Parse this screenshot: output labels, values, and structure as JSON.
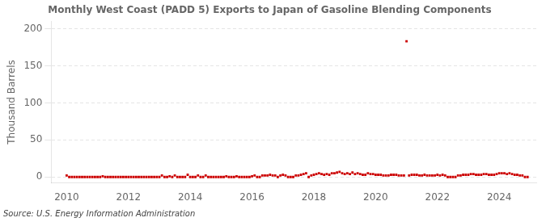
{
  "chart_data": {
    "type": "scatter",
    "title": "Monthly West Coast (PADD 5) Exports to Japan of Gasoline Blending Components",
    "ylabel": "Thousand Barrels",
    "source": "Source: U.S. Energy Information Administration",
    "color": "#cc0000",
    "marker": "square",
    "grid": "y",
    "xlim": [
      2009.5,
      2025.2
    ],
    "ylim": [
      -8,
      210
    ],
    "xticks": [
      2010,
      2012,
      2014,
      2016,
      2018,
      2020,
      2022,
      2024
    ],
    "yticks": [
      0,
      50,
      100,
      150,
      200
    ],
    "x": [
      2010.0,
      2010.083,
      2010.167,
      2010.25,
      2010.333,
      2010.417,
      2010.5,
      2010.583,
      2010.667,
      2010.75,
      2010.833,
      2010.917,
      2011.0,
      2011.083,
      2011.167,
      2011.25,
      2011.333,
      2011.417,
      2011.5,
      2011.583,
      2011.667,
      2011.75,
      2011.833,
      2011.917,
      2012.0,
      2012.083,
      2012.167,
      2012.25,
      2012.333,
      2012.417,
      2012.5,
      2012.583,
      2012.667,
      2012.75,
      2012.833,
      2012.917,
      2013.0,
      2013.083,
      2013.167,
      2013.25,
      2013.333,
      2013.417,
      2013.5,
      2013.583,
      2013.667,
      2013.75,
      2013.833,
      2013.917,
      2014.0,
      2014.083,
      2014.167,
      2014.25,
      2014.333,
      2014.417,
      2014.5,
      2014.583,
      2014.667,
      2014.75,
      2014.833,
      2014.917,
      2015.0,
      2015.083,
      2015.167,
      2015.25,
      2015.333,
      2015.417,
      2015.5,
      2015.583,
      2015.667,
      2015.75,
      2015.833,
      2015.917,
      2016.0,
      2016.083,
      2016.167,
      2016.25,
      2016.333,
      2016.417,
      2016.5,
      2016.583,
      2016.667,
      2016.75,
      2016.833,
      2016.917,
      2017.0,
      2017.083,
      2017.167,
      2017.25,
      2017.333,
      2017.417,
      2017.5,
      2017.583,
      2017.667,
      2017.75,
      2017.833,
      2017.917,
      2018.0,
      2018.083,
      2018.167,
      2018.25,
      2018.333,
      2018.417,
      2018.5,
      2018.583,
      2018.667,
      2018.75,
      2018.833,
      2018.917,
      2019.0,
      2019.083,
      2019.167,
      2019.25,
      2019.333,
      2019.417,
      2019.5,
      2019.583,
      2019.667,
      2019.75,
      2019.833,
      2019.917,
      2020.0,
      2020.083,
      2020.167,
      2020.25,
      2020.333,
      2020.417,
      2020.5,
      2020.583,
      2020.667,
      2020.75,
      2020.833,
      2020.917,
      2021.0,
      2021.083,
      2021.167,
      2021.25,
      2021.333,
      2021.417,
      2021.5,
      2021.583,
      2021.667,
      2021.75,
      2021.833,
      2021.917,
      2022.0,
      2022.083,
      2022.167,
      2022.25,
      2022.333,
      2022.417,
      2022.5,
      2022.583,
      2022.667,
      2022.75,
      2022.833,
      2022.917,
      2023.0,
      2023.083,
      2023.167,
      2023.25,
      2023.333,
      2023.417,
      2023.5,
      2023.583,
      2023.667,
      2023.75,
      2023.833,
      2023.917,
      2024.0,
      2024.083,
      2024.167,
      2024.25,
      2024.333,
      2024.417,
      2024.5,
      2024.583,
      2024.667,
      2024.75,
      2024.833,
      2024.917
    ],
    "values": [
      2,
      0,
      0,
      0,
      0,
      0,
      0,
      0,
      0,
      0,
      0,
      0,
      0,
      0,
      1,
      0,
      0,
      0,
      0,
      0,
      0,
      0,
      0,
      0,
      0,
      0,
      0,
      0,
      0,
      0,
      0,
      0,
      0,
      0,
      0,
      0,
      0,
      2,
      0,
      0,
      1,
      0,
      2,
      0,
      0,
      0,
      0,
      3,
      0,
      0,
      0,
      2,
      0,
      0,
      2,
      0,
      0,
      0,
      0,
      0,
      0,
      0,
      1,
      0,
      0,
      0,
      1,
      0,
      0,
      0,
      0,
      0,
      1,
      2,
      0,
      0,
      2,
      2,
      2,
      3,
      2,
      2,
      0,
      2,
      3,
      2,
      0,
      0,
      0,
      2,
      2,
      3,
      4,
      5,
      0,
      2,
      3,
      4,
      5,
      4,
      3,
      4,
      3,
      5,
      5,
      6,
      7,
      5,
      4,
      5,
      4,
      6,
      4,
      5,
      4,
      3,
      3,
      5,
      4,
      4,
      3,
      3,
      3,
      2,
      2,
      2,
      3,
      3,
      3,
      2,
      2,
      2,
      183,
      2,
      3,
      3,
      3,
      2,
      2,
      3,
      2,
      2,
      2,
      2,
      3,
      2,
      3,
      2,
      0,
      0,
      0,
      0,
      2,
      2,
      3,
      3,
      3,
      4,
      4,
      3,
      3,
      3,
      4,
      4,
      3,
      3,
      3,
      4,
      5,
      5,
      5,
      4,
      5,
      4,
      3,
      3,
      2,
      2,
      0,
      0
    ]
  }
}
